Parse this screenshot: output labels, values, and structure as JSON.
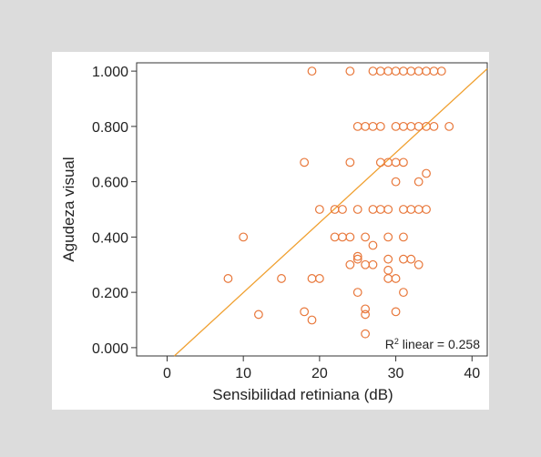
{
  "chart_data": {
    "type": "scatter",
    "xlabel": "Sensibilidad retiniana (dB)",
    "ylabel": "Agudeza visual",
    "xlim": [
      -4,
      42
    ],
    "ylim": [
      -0.03,
      1.03
    ],
    "xticks": [
      0,
      10,
      20,
      30,
      40
    ],
    "yticks": [
      0.0,
      0.2,
      0.4,
      0.6,
      0.8,
      1.0
    ],
    "ytick_labels": [
      "0.000",
      "0.200",
      "0.400",
      "0.600",
      "0.800",
      "1.000"
    ],
    "grid": false,
    "point_color": "#e8773a",
    "line_color": "#f0a030",
    "fit_line": {
      "slope": 0.0253,
      "intercept": -0.054
    },
    "annotation": {
      "r": "R",
      "sup": "2",
      "rest": " linear = 0.258"
    },
    "points": [
      [
        19,
        1.0
      ],
      [
        24,
        1.0
      ],
      [
        27,
        1.0
      ],
      [
        28,
        1.0
      ],
      [
        29,
        1.0
      ],
      [
        30,
        1.0
      ],
      [
        31,
        1.0
      ],
      [
        32,
        1.0
      ],
      [
        33,
        1.0
      ],
      [
        34,
        1.0
      ],
      [
        35,
        1.0
      ],
      [
        36,
        1.0
      ],
      [
        25,
        0.8
      ],
      [
        26,
        0.8
      ],
      [
        27,
        0.8
      ],
      [
        28,
        0.8
      ],
      [
        30,
        0.8
      ],
      [
        31,
        0.8
      ],
      [
        32,
        0.8
      ],
      [
        33,
        0.8
      ],
      [
        34,
        0.8
      ],
      [
        35,
        0.8
      ],
      [
        37,
        0.8
      ],
      [
        18,
        0.67
      ],
      [
        24,
        0.67
      ],
      [
        28,
        0.67
      ],
      [
        29,
        0.67
      ],
      [
        30,
        0.67
      ],
      [
        31,
        0.67
      ],
      [
        34,
        0.63
      ],
      [
        33,
        0.6
      ],
      [
        30,
        0.6
      ],
      [
        20,
        0.5
      ],
      [
        22,
        0.5
      ],
      [
        23,
        0.5
      ],
      [
        25,
        0.5
      ],
      [
        27,
        0.5
      ],
      [
        28,
        0.5
      ],
      [
        29,
        0.5
      ],
      [
        31,
        0.5
      ],
      [
        32,
        0.5
      ],
      [
        33,
        0.5
      ],
      [
        34,
        0.5
      ],
      [
        10,
        0.4
      ],
      [
        22,
        0.4
      ],
      [
        23,
        0.4
      ],
      [
        24,
        0.4
      ],
      [
        26,
        0.4
      ],
      [
        29,
        0.4
      ],
      [
        31,
        0.4
      ],
      [
        27,
        0.37
      ],
      [
        25,
        0.33
      ],
      [
        25,
        0.32
      ],
      [
        29,
        0.32
      ],
      [
        31,
        0.32
      ],
      [
        32,
        0.32
      ],
      [
        33,
        0.3
      ],
      [
        24,
        0.3
      ],
      [
        26,
        0.3
      ],
      [
        27,
        0.3
      ],
      [
        29,
        0.28
      ],
      [
        8,
        0.25
      ],
      [
        15,
        0.25
      ],
      [
        19,
        0.25
      ],
      [
        20,
        0.25
      ],
      [
        29,
        0.25
      ],
      [
        30,
        0.25
      ],
      [
        25,
        0.2
      ],
      [
        31,
        0.2
      ],
      [
        26,
        0.14
      ],
      [
        26,
        0.12
      ],
      [
        18,
        0.13
      ],
      [
        30,
        0.13
      ],
      [
        12,
        0.12
      ],
      [
        19,
        0.1
      ],
      [
        26,
        0.05
      ]
    ]
  }
}
